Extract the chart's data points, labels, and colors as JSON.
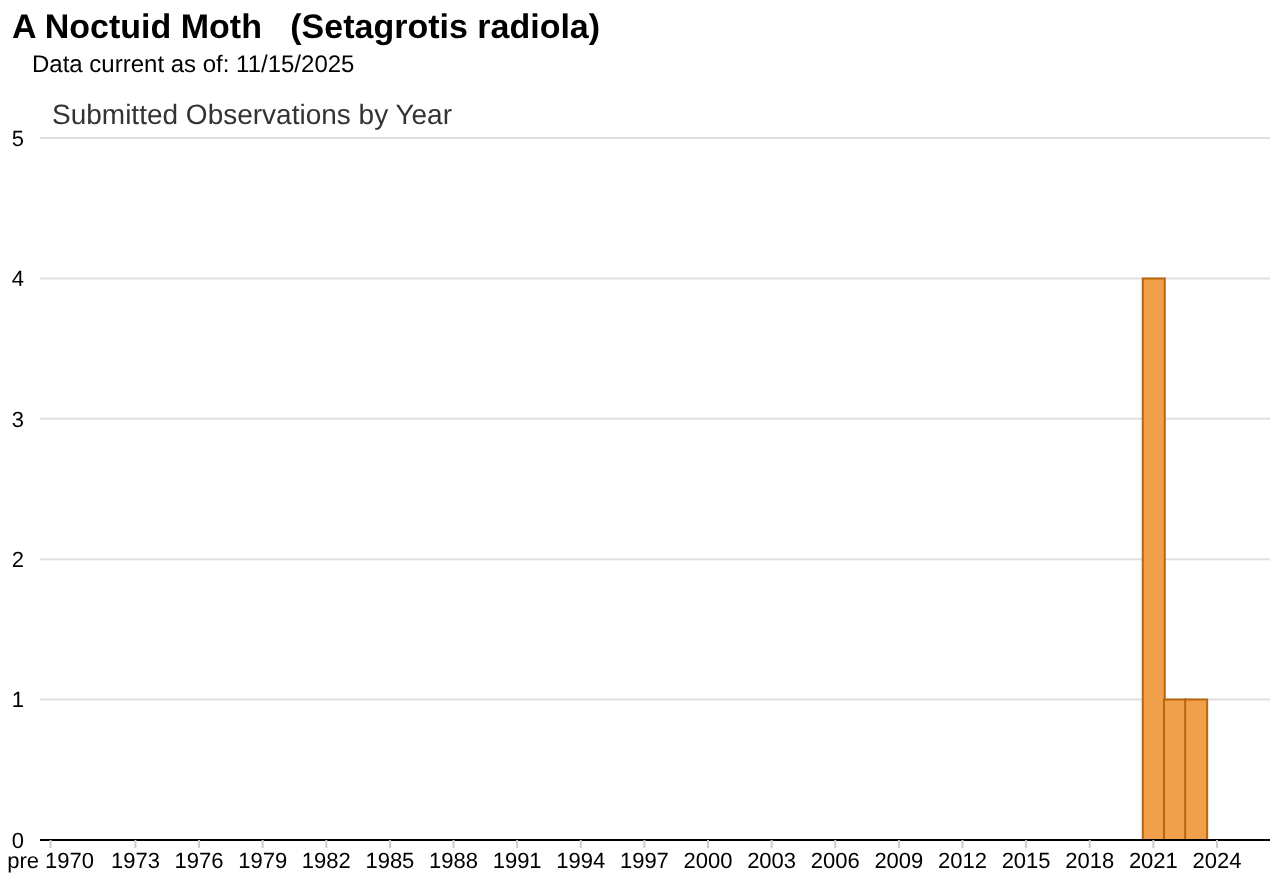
{
  "chart_data": {
    "type": "bar",
    "title": "A Noctuid Moth   (Setagrotis radiola)",
    "subtitle": "Data current as of: 11/15/2025",
    "annotations": [
      "Submitted Observations by Year"
    ],
    "categories": [
      "pre 1970",
      null,
      null,
      null,
      "1973",
      null,
      null,
      "1976",
      null,
      null,
      "1979",
      null,
      null,
      "1982",
      null,
      null,
      "1985",
      null,
      null,
      "1988",
      null,
      null,
      "1991",
      null,
      null,
      "1994",
      null,
      null,
      "1997",
      null,
      null,
      "2000",
      null,
      null,
      "2003",
      null,
      null,
      "2006",
      null,
      null,
      "2009",
      null,
      null,
      "2012",
      null,
      null,
      "2015",
      null,
      null,
      "2018",
      null,
      null,
      "2021",
      null,
      null,
      "2024",
      null,
      null
    ],
    "values": [
      0,
      0,
      0,
      0,
      0,
      0,
      0,
      0,
      0,
      0,
      0,
      0,
      0,
      0,
      0,
      0,
      0,
      0,
      0,
      0,
      0,
      0,
      0,
      0,
      0,
      0,
      0,
      0,
      0,
      0,
      0,
      0,
      0,
      0,
      0,
      0,
      0,
      0,
      0,
      0,
      0,
      0,
      0,
      0,
      0,
      0,
      0,
      0,
      0,
      0,
      0,
      0,
      4,
      1,
      1,
      0,
      0,
      0
    ],
    "color": "#f0a04b",
    "ylim": [
      0,
      5
    ],
    "yticks": [
      0,
      1,
      2,
      3,
      4,
      5
    ],
    "grid": "y"
  }
}
